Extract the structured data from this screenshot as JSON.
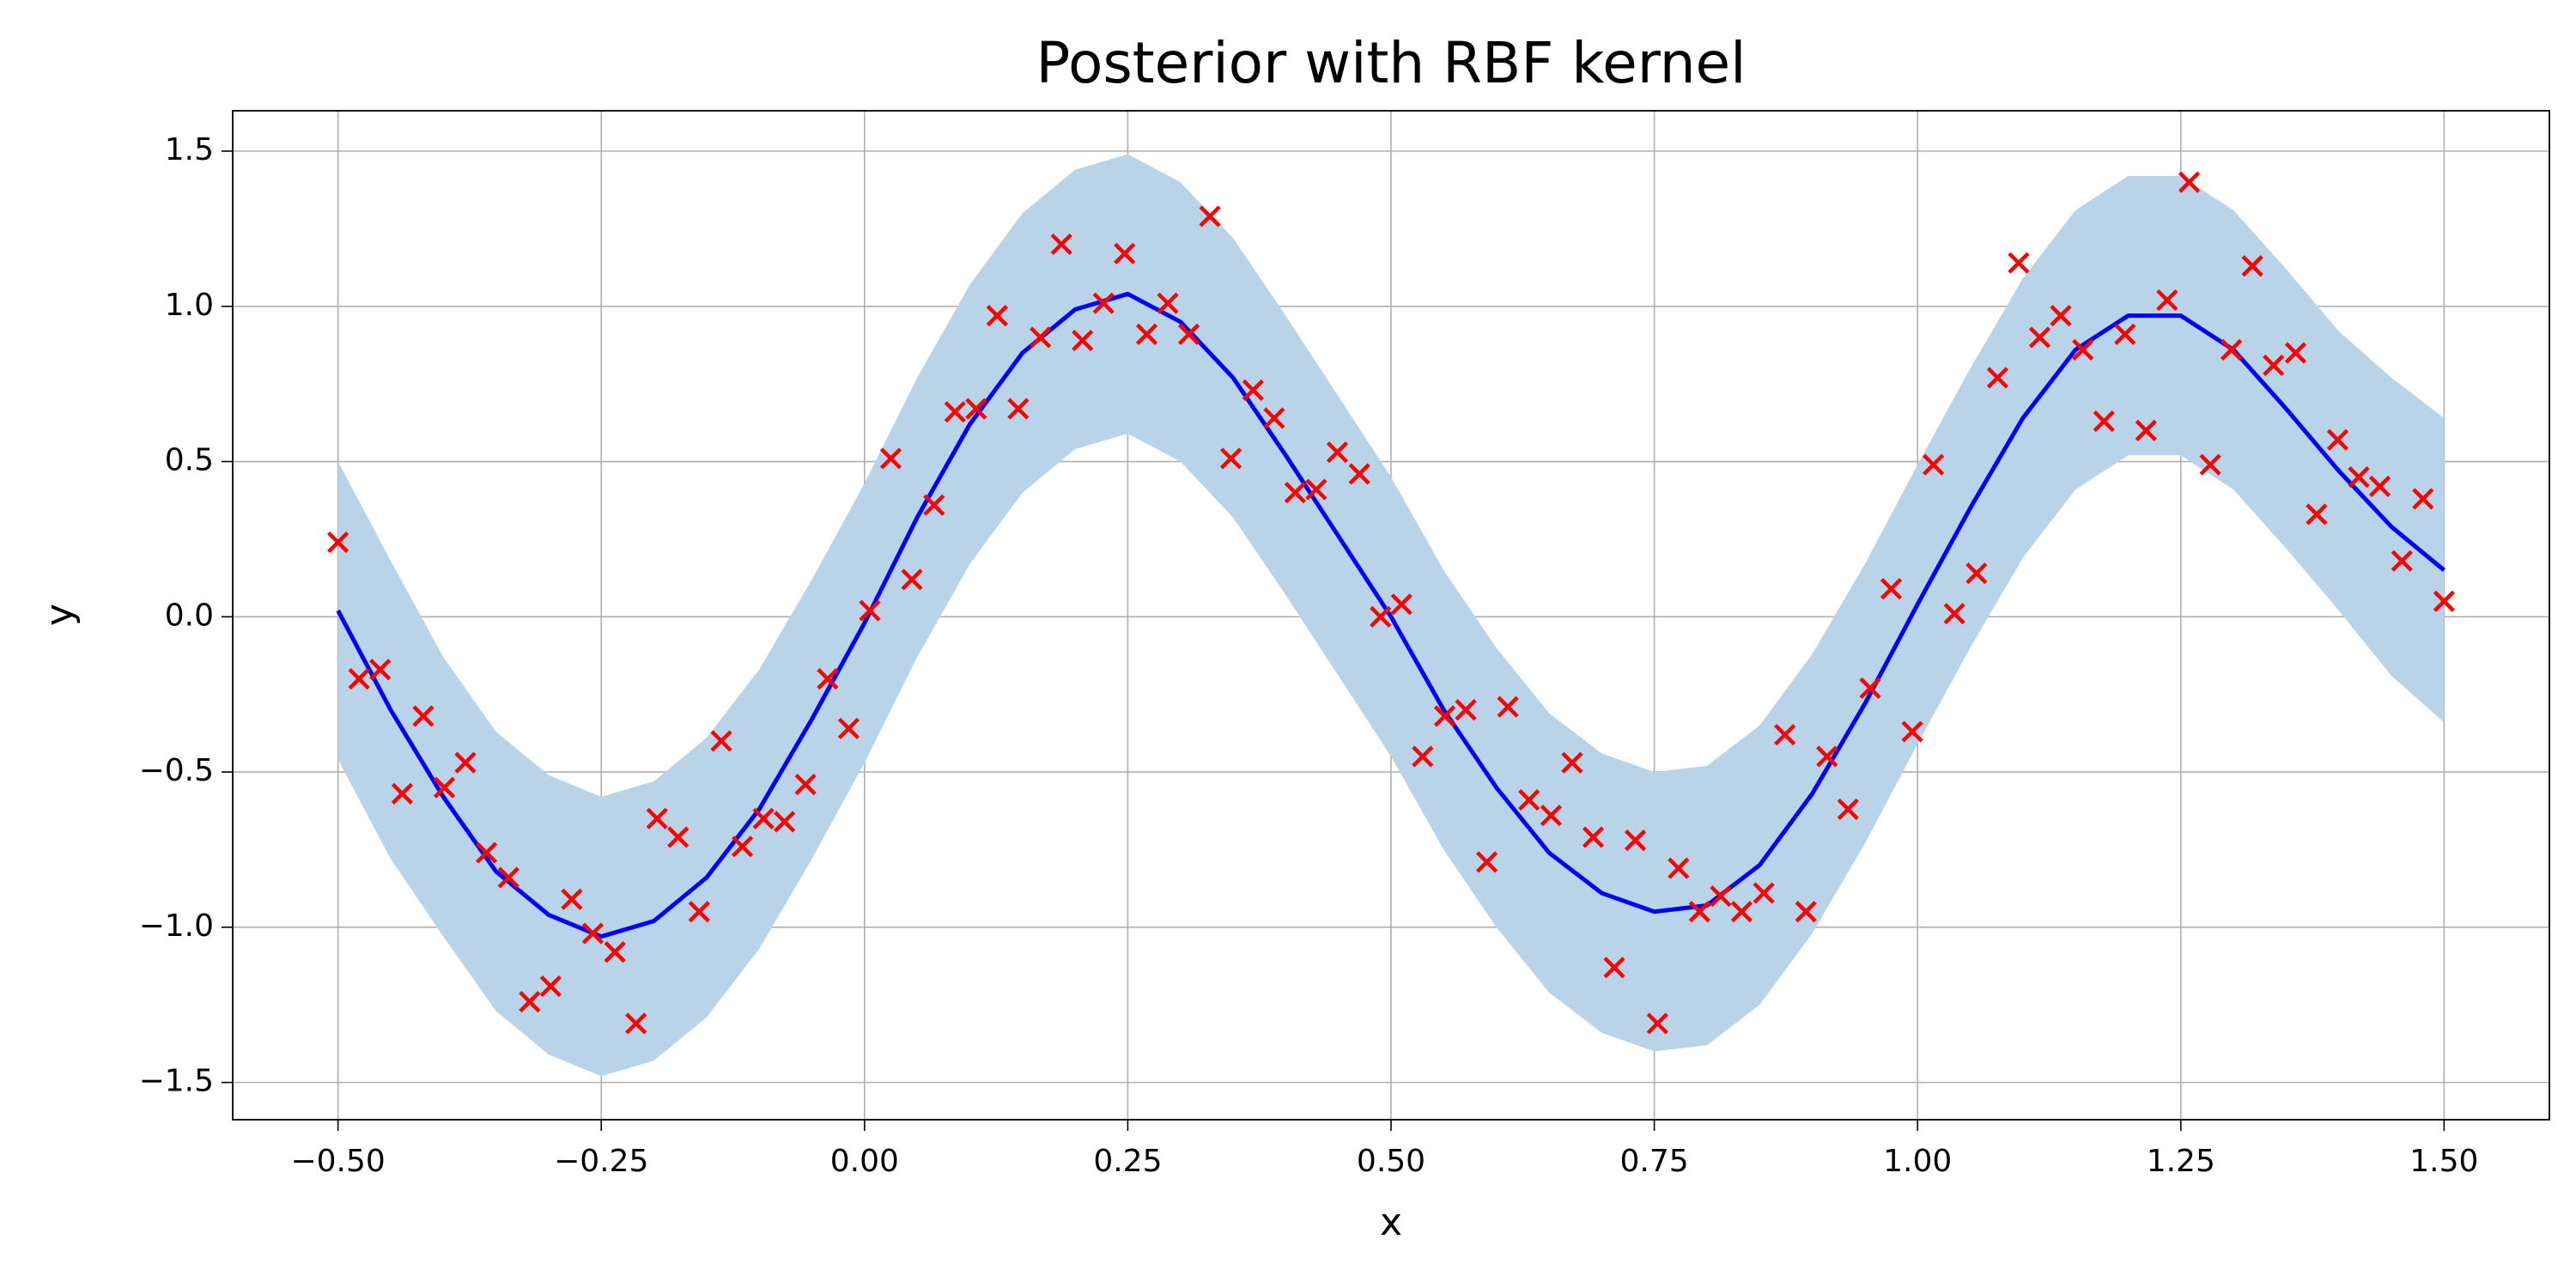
{
  "chart_data": {
    "type": "line",
    "title": "Posterior with RBF kernel",
    "x_label": "x",
    "y_label": "y",
    "xlim": [
      -0.6,
      1.6
    ],
    "ylim": [
      -1.62,
      1.63
    ],
    "xticks": [
      {
        "value": -0.5,
        "label": "−0.50"
      },
      {
        "value": -0.25,
        "label": "−0.25"
      },
      {
        "value": 0,
        "label": "0.00"
      },
      0.25,
      {
        "value": 0.5,
        "label": "0.50"
      },
      0.75,
      {
        "value": 1,
        "label": "1.00"
      },
      1.25,
      {
        "value": 1.5,
        "label": "1.50"
      }
    ],
    "yticks": [
      {
        "value": -1.5,
        "label": "−1.5"
      },
      {
        "value": -1,
        "label": "−1.0"
      },
      {
        "value": -0.5,
        "label": "−0.5"
      },
      {
        "value": 0,
        "label": "0.0"
      },
      0.5,
      {
        "value": 1,
        "label": "1.0"
      },
      1.5
    ],
    "grid": true,
    "band": {
      "color": "#b9d4e8",
      "x": [
        -0.5,
        -0.45,
        -0.4,
        -0.35,
        -0.3,
        -0.25,
        -0.2,
        -0.15,
        -0.1,
        -0.05,
        0,
        0.05,
        0.1,
        0.15,
        0.2,
        0.25,
        0.3,
        0.35,
        0.4,
        0.45,
        0.5,
        0.55,
        0.6,
        0.65,
        0.7,
        0.75,
        0.8,
        0.85,
        0.9,
        0.95,
        1,
        1.05,
        1.1,
        1.15,
        1.2,
        1.25,
        1.3,
        1.35,
        1.4,
        1.45,
        1.5
      ],
      "upper": [
        0.5,
        0.18,
        -0.13,
        -0.37,
        -0.51,
        -0.58,
        -0.53,
        -0.39,
        -0.17,
        0.12,
        0.43,
        0.77,
        1.07,
        1.3,
        1.44,
        1.49,
        1.4,
        1.22,
        0.97,
        0.71,
        0.45,
        0.15,
        -0.1,
        -0.31,
        -0.44,
        -0.5,
        -0.48,
        -0.35,
        -0.12,
        0.17,
        0.49,
        0.8,
        1.09,
        1.31,
        1.42,
        1.42,
        1.31,
        1.12,
        0.92,
        0.77,
        0.64
      ],
      "lower": [
        -0.46,
        -0.78,
        -1.03,
        -1.27,
        -1.41,
        -1.48,
        -1.43,
        -1.29,
        -1.07,
        -0.78,
        -0.47,
        -0.13,
        0.17,
        0.4,
        0.54,
        0.59,
        0.5,
        0.32,
        0.07,
        -0.19,
        -0.45,
        -0.75,
        -1,
        -1.21,
        -1.34,
        -1.4,
        -1.38,
        -1.25,
        -1.02,
        -0.73,
        -0.41,
        -0.1,
        0.19,
        0.41,
        0.52,
        0.52,
        0.41,
        0.22,
        0.02,
        -0.19,
        -0.34
      ]
    },
    "line": {
      "color": "#0000ff",
      "x": [
        -0.5,
        -0.45,
        -0.4,
        -0.35,
        -0.3,
        -0.25,
        -0.2,
        -0.15,
        -0.1,
        -0.05,
        0,
        0.05,
        0.1,
        0.15,
        0.2,
        0.25,
        0.3,
        0.35,
        0.4,
        0.45,
        0.5,
        0.55,
        0.6,
        0.65,
        0.7,
        0.75,
        0.8,
        0.85,
        0.9,
        0.95,
        1,
        1.05,
        1.1,
        1.15,
        1.2,
        1.25,
        1.3,
        1.35,
        1.4,
        1.45,
        1.5
      ],
      "values": [
        0.02,
        -0.3,
        -0.58,
        -0.82,
        -0.96,
        -1.03,
        -0.98,
        -0.84,
        -0.62,
        -0.33,
        -0.02,
        0.32,
        0.62,
        0.85,
        0.99,
        1.04,
        0.95,
        0.77,
        0.52,
        0.26,
        0,
        -0.3,
        -0.55,
        -0.76,
        -0.89,
        -0.95,
        -0.93,
        -0.8,
        -0.57,
        -0.28,
        0.04,
        0.35,
        0.64,
        0.86,
        0.97,
        0.97,
        0.86,
        0.67,
        0.47,
        0.29,
        0.15
      ]
    },
    "scatter": {
      "color": "#ff0000",
      "x": [
        -0.5,
        -0.48,
        -0.46,
        -0.439,
        -0.419,
        -0.399,
        -0.379,
        -0.359,
        -0.338,
        -0.318,
        -0.298,
        -0.278,
        -0.258,
        -0.237,
        -0.217,
        -0.197,
        -0.177,
        -0.157,
        -0.136,
        -0.116,
        -0.096,
        -0.076,
        -0.056,
        -0.035,
        -0.015,
        0.005,
        0.025,
        0.045,
        0.066,
        0.086,
        0.106,
        0.126,
        0.146,
        0.167,
        0.187,
        0.207,
        0.227,
        0.247,
        0.268,
        0.288,
        0.308,
        0.328,
        0.348,
        0.369,
        0.389,
        0.409,
        0.429,
        0.449,
        0.47,
        0.49,
        0.51,
        0.53,
        0.551,
        0.571,
        0.591,
        0.611,
        0.631,
        0.652,
        0.672,
        0.692,
        0.712,
        0.732,
        0.753,
        0.773,
        0.793,
        0.813,
        0.833,
        0.854,
        0.874,
        0.894,
        0.914,
        0.934,
        0.955,
        0.975,
        0.995,
        1.015,
        1.035,
        1.056,
        1.076,
        1.096,
        1.116,
        1.136,
        1.157,
        1.177,
        1.197,
        1.217,
        1.237,
        1.258,
        1.278,
        1.298,
        1.318,
        1.338,
        1.359,
        1.379,
        1.399,
        1.419,
        1.439,
        1.46,
        1.48,
        1.5
      ],
      "values": [
        0.24,
        -0.2,
        -0.17,
        -0.57,
        -0.32,
        -0.55,
        -0.47,
        -0.76,
        -0.84,
        -1.24,
        -1.19,
        -0.91,
        -1.02,
        -1.08,
        -1.31,
        -0.65,
        -0.71,
        -0.95,
        -0.4,
        -0.74,
        -0.65,
        -0.66,
        -0.54,
        -0.2,
        -0.36,
        0.02,
        0.51,
        0.12,
        0.36,
        0.66,
        0.67,
        0.97,
        0.67,
        0.9,
        1.2,
        0.89,
        1.01,
        1.17,
        0.91,
        1.01,
        0.91,
        1.29,
        0.51,
        0.73,
        0.64,
        0.4,
        0.41,
        0.53,
        0.46,
        0,
        0.04,
        -0.45,
        -0.32,
        -0.3,
        -0.79,
        -0.29,
        -0.59,
        -0.64,
        -0.47,
        -0.71,
        -1.13,
        -0.72,
        -1.31,
        -0.81,
        -0.95,
        -0.9,
        -0.95,
        -0.89,
        -0.38,
        -0.95,
        -0.45,
        -0.62,
        -0.23,
        0.09,
        -0.37,
        0.49,
        0.01,
        0.14,
        0.77,
        1.14,
        0.9,
        0.97,
        0.86,
        0.63,
        0.91,
        0.6,
        1.02,
        1.4,
        0.49,
        0.86,
        1.13,
        0.81,
        0.85,
        0.33,
        0.57,
        0.45,
        0.42,
        0.18,
        0.38,
        0.05
      ]
    }
  }
}
